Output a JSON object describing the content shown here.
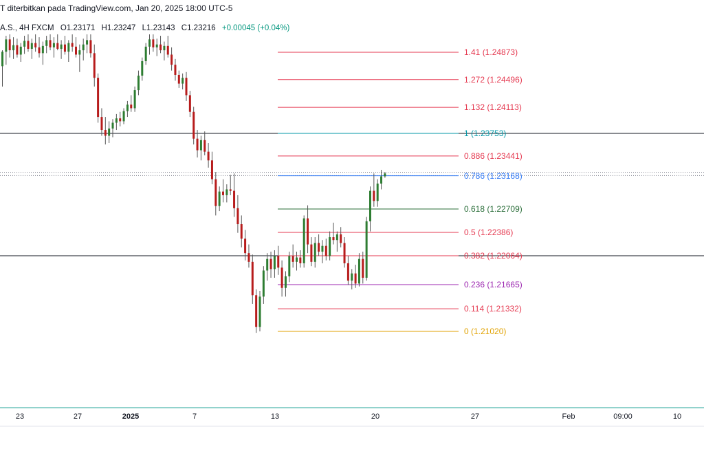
{
  "header": {
    "published_text": "T diterbitkan pada TradingView.com, Jan 20, 2025 18:00 UTC-5"
  },
  "ohlc": {
    "symbol": "A.S., 4H FXCM",
    "open": "O1.23171",
    "high": "H1.23247",
    "low": "L1.23143",
    "close": "C1.23216",
    "change": "+0.00045 (+0.04%)"
  },
  "chart_data": {
    "type": "candlestick",
    "fib_levels": [
      {
        "ratio": "1.41",
        "price": "1.24873",
        "label": "1.41 (1.24873)",
        "color": "#e53950"
      },
      {
        "ratio": "1.272",
        "price": "1.24496",
        "label": "1.272 (1.24496)",
        "color": "#e53950"
      },
      {
        "ratio": "1.132",
        "price": "1.24113",
        "label": "1.132 (1.24113)",
        "color": "#e53950"
      },
      {
        "ratio": "1",
        "price": "1.23753",
        "label": "1 (1.23753)",
        "color": "#0097a7"
      },
      {
        "ratio": "0.886",
        "price": "1.23441",
        "label": "0.886 (1.23441)",
        "color": "#e53950"
      },
      {
        "ratio": "0.786",
        "price": "1.23168",
        "label": "0.786 (1.23168)",
        "color": "#3179f5"
      },
      {
        "ratio": "0.618",
        "price": "1.22709",
        "label": "0.618 (1.22709)",
        "color": "#2b6e3a"
      },
      {
        "ratio": "0.5",
        "price": "1.22386",
        "label": "0.5 (1.22386)",
        "color": "#e53950"
      },
      {
        "ratio": "0.382",
        "price": "1.22064",
        "label": "0.382 (1.22064)",
        "color": "#e53950"
      },
      {
        "ratio": "0.236",
        "price": "1.21665",
        "label": "0.236 (1.21665)",
        "color": "#9c27b0"
      },
      {
        "ratio": "0.114",
        "price": "1.21332",
        "label": "0.114 (1.21332)",
        "color": "#e53950"
      },
      {
        "ratio": "0",
        "price": "1.21020",
        "label": "0 (1.21020)",
        "color": "#e1a200"
      }
    ],
    "horizontal_lines": [
      1.23753,
      1.22064
    ],
    "x_axis_labels": [
      "23",
      "27",
      "2025",
      "7",
      "13",
      "20",
      "27",
      "Feb",
      "09:00",
      "10"
    ],
    "candles": [
      {
        "o": 1.2468,
        "h": 1.249,
        "l": 1.244,
        "c": 1.2488
      },
      {
        "o": 1.2488,
        "h": 1.251,
        "l": 1.247,
        "c": 1.2505
      },
      {
        "o": 1.2505,
        "h": 1.2512,
        "l": 1.248,
        "c": 1.249
      },
      {
        "o": 1.249,
        "h": 1.2508,
        "l": 1.2478,
        "c": 1.2497
      },
      {
        "o": 1.2497,
        "h": 1.2506,
        "l": 1.248,
        "c": 1.2484
      },
      {
        "o": 1.2484,
        "h": 1.25,
        "l": 1.2474,
        "c": 1.2495
      },
      {
        "o": 1.2495,
        "h": 1.251,
        "l": 1.2485,
        "c": 1.2503
      },
      {
        "o": 1.2503,
        "h": 1.2512,
        "l": 1.2488,
        "c": 1.2492
      },
      {
        "o": 1.2492,
        "h": 1.2506,
        "l": 1.2478,
        "c": 1.25
      },
      {
        "o": 1.25,
        "h": 1.2512,
        "l": 1.2488,
        "c": 1.2494
      },
      {
        "o": 1.2494,
        "h": 1.2508,
        "l": 1.248,
        "c": 1.2486
      },
      {
        "o": 1.2486,
        "h": 1.2502,
        "l": 1.247,
        "c": 1.2496
      },
      {
        "o": 1.2496,
        "h": 1.251,
        "l": 1.2486,
        "c": 1.2504
      },
      {
        "o": 1.2504,
        "h": 1.2512,
        "l": 1.249,
        "c": 1.2494
      },
      {
        "o": 1.2494,
        "h": 1.2508,
        "l": 1.248,
        "c": 1.25
      },
      {
        "o": 1.25,
        "h": 1.2512,
        "l": 1.249,
        "c": 1.2492
      },
      {
        "o": 1.2492,
        "h": 1.2504,
        "l": 1.2478,
        "c": 1.2498
      },
      {
        "o": 1.2498,
        "h": 1.251,
        "l": 1.2484,
        "c": 1.2488
      },
      {
        "o": 1.2488,
        "h": 1.2504,
        "l": 1.2474,
        "c": 1.25
      },
      {
        "o": 1.25,
        "h": 1.2512,
        "l": 1.2488,
        "c": 1.2495
      },
      {
        "o": 1.2495,
        "h": 1.2508,
        "l": 1.248,
        "c": 1.2484
      },
      {
        "o": 1.2484,
        "h": 1.2498,
        "l": 1.246,
        "c": 1.249
      },
      {
        "o": 1.249,
        "h": 1.2506,
        "l": 1.2476,
        "c": 1.2498
      },
      {
        "o": 1.2498,
        "h": 1.2512,
        "l": 1.2486,
        "c": 1.2504
      },
      {
        "o": 1.2504,
        "h": 1.2512,
        "l": 1.248,
        "c": 1.2486
      },
      {
        "o": 1.2486,
        "h": 1.2498,
        "l": 1.244,
        "c": 1.2452
      },
      {
        "o": 1.2452,
        "h": 1.2458,
        "l": 1.239,
        "c": 1.2398
      },
      {
        "o": 1.2398,
        "h": 1.241,
        "l": 1.2372,
        "c": 1.238
      },
      {
        "o": 1.238,
        "h": 1.2398,
        "l": 1.236,
        "c": 1.2372
      },
      {
        "o": 1.2372,
        "h": 1.2392,
        "l": 1.2362,
        "c": 1.2382
      },
      {
        "o": 1.2382,
        "h": 1.2395,
        "l": 1.237,
        "c": 1.239
      },
      {
        "o": 1.239,
        "h": 1.2402,
        "l": 1.238,
        "c": 1.2396
      },
      {
        "o": 1.2396,
        "h": 1.2405,
        "l": 1.2385,
        "c": 1.2392
      },
      {
        "o": 1.2392,
        "h": 1.241,
        "l": 1.2388,
        "c": 1.2406
      },
      {
        "o": 1.2406,
        "h": 1.242,
        "l": 1.2398,
        "c": 1.2415
      },
      {
        "o": 1.2415,
        "h": 1.2428,
        "l": 1.2405,
        "c": 1.241
      },
      {
        "o": 1.241,
        "h": 1.244,
        "l": 1.2405,
        "c": 1.2435
      },
      {
        "o": 1.2435,
        "h": 1.2462,
        "l": 1.2428,
        "c": 1.2455
      },
      {
        "o": 1.2455,
        "h": 1.248,
        "l": 1.2448,
        "c": 1.2475
      },
      {
        "o": 1.2475,
        "h": 1.25,
        "l": 1.247,
        "c": 1.2495
      },
      {
        "o": 1.2495,
        "h": 1.2512,
        "l": 1.2484,
        "c": 1.2505
      },
      {
        "o": 1.2505,
        "h": 1.2512,
        "l": 1.2488,
        "c": 1.2494
      },
      {
        "o": 1.2494,
        "h": 1.2506,
        "l": 1.2482,
        "c": 1.2498
      },
      {
        "o": 1.2498,
        "h": 1.251,
        "l": 1.2486,
        "c": 1.249
      },
      {
        "o": 1.249,
        "h": 1.2502,
        "l": 1.2476,
        "c": 1.2496
      },
      {
        "o": 1.2496,
        "h": 1.251,
        "l": 1.248,
        "c": 1.2484
      },
      {
        "o": 1.2484,
        "h": 1.2494,
        "l": 1.2462,
        "c": 1.247
      },
      {
        "o": 1.247,
        "h": 1.2478,
        "l": 1.2448,
        "c": 1.2456
      },
      {
        "o": 1.2456,
        "h": 1.2462,
        "l": 1.2438,
        "c": 1.2444
      },
      {
        "o": 1.2444,
        "h": 1.2458,
        "l": 1.2436,
        "c": 1.2452
      },
      {
        "o": 1.2452,
        "h": 1.246,
        "l": 1.242,
        "c": 1.2428
      },
      {
        "o": 1.2428,
        "h": 1.2434,
        "l": 1.2398,
        "c": 1.2405
      },
      {
        "o": 1.2405,
        "h": 1.2412,
        "l": 1.236,
        "c": 1.2368
      },
      {
        "o": 1.2368,
        "h": 1.238,
        "l": 1.2342,
        "c": 1.2352
      },
      {
        "o": 1.2352,
        "h": 1.2372,
        "l": 1.2338,
        "c": 1.2366
      },
      {
        "o": 1.2366,
        "h": 1.2378,
        "l": 1.2345,
        "c": 1.235
      },
      {
        "o": 1.235,
        "h": 1.2362,
        "l": 1.2328,
        "c": 1.2338
      },
      {
        "o": 1.2338,
        "h": 1.235,
        "l": 1.2305,
        "c": 1.2312
      },
      {
        "o": 1.2312,
        "h": 1.2322,
        "l": 1.2262,
        "c": 1.2275
      },
      {
        "o": 1.2275,
        "h": 1.2302,
        "l": 1.2268,
        "c": 1.2295
      },
      {
        "o": 1.2295,
        "h": 1.2312,
        "l": 1.228,
        "c": 1.229
      },
      {
        "o": 1.229,
        "h": 1.2305,
        "l": 1.228,
        "c": 1.2298
      },
      {
        "o": 1.2298,
        "h": 1.2318,
        "l": 1.229,
        "c": 1.2296
      },
      {
        "o": 1.2296,
        "h": 1.232,
        "l": 1.226,
        "c": 1.2272
      },
      {
        "o": 1.2272,
        "h": 1.229,
        "l": 1.2238,
        "c": 1.225
      },
      {
        "o": 1.225,
        "h": 1.2262,
        "l": 1.2218,
        "c": 1.223
      },
      {
        "o": 1.223,
        "h": 1.2242,
        "l": 1.22,
        "c": 1.221
      },
      {
        "o": 1.221,
        "h": 1.2222,
        "l": 1.219,
        "c": 1.2198
      },
      {
        "o": 1.2198,
        "h": 1.2208,
        "l": 1.214,
        "c": 1.2152
      },
      {
        "o": 1.2152,
        "h": 1.216,
        "l": 1.21,
        "c": 1.2108
      },
      {
        "o": 1.2108,
        "h": 1.2158,
        "l": 1.2102,
        "c": 1.215
      },
      {
        "o": 1.215,
        "h": 1.2192,
        "l": 1.214,
        "c": 1.2186
      },
      {
        "o": 1.2186,
        "h": 1.221,
        "l": 1.2172,
        "c": 1.2202
      },
      {
        "o": 1.2202,
        "h": 1.2212,
        "l": 1.2176,
        "c": 1.2188
      },
      {
        "o": 1.2188,
        "h": 1.2214,
        "l": 1.2176,
        "c": 1.2206
      },
      {
        "o": 1.2206,
        "h": 1.222,
        "l": 1.218,
        "c": 1.219
      },
      {
        "o": 1.219,
        "h": 1.22,
        "l": 1.215,
        "c": 1.2162
      },
      {
        "o": 1.2162,
        "h": 1.2185,
        "l": 1.215,
        "c": 1.2178
      },
      {
        "o": 1.2178,
        "h": 1.2212,
        "l": 1.217,
        "c": 1.2206
      },
      {
        "o": 1.2206,
        "h": 1.2222,
        "l": 1.219,
        "c": 1.2198
      },
      {
        "o": 1.2198,
        "h": 1.2212,
        "l": 1.2186,
        "c": 1.2204
      },
      {
        "o": 1.2204,
        "h": 1.2214,
        "l": 1.219,
        "c": 1.2196
      },
      {
        "o": 1.2196,
        "h": 1.2262,
        "l": 1.219,
        "c": 1.2258
      },
      {
        "o": 1.2258,
        "h": 1.2276,
        "l": 1.221,
        "c": 1.2222
      },
      {
        "o": 1.2222,
        "h": 1.2232,
        "l": 1.2192,
        "c": 1.2198
      },
      {
        "o": 1.2198,
        "h": 1.2232,
        "l": 1.219,
        "c": 1.2224
      },
      {
        "o": 1.2224,
        "h": 1.2236,
        "l": 1.2206,
        "c": 1.2212
      },
      {
        "o": 1.2212,
        "h": 1.2228,
        "l": 1.2196,
        "c": 1.222
      },
      {
        "o": 1.222,
        "h": 1.223,
        "l": 1.22,
        "c": 1.2206
      },
      {
        "o": 1.2206,
        "h": 1.224,
        "l": 1.22,
        "c": 1.2232
      },
      {
        "o": 1.2232,
        "h": 1.2252,
        "l": 1.2222,
        "c": 1.2228
      },
      {
        "o": 1.2228,
        "h": 1.224,
        "l": 1.2212,
        "c": 1.2236
      },
      {
        "o": 1.2236,
        "h": 1.2246,
        "l": 1.2218,
        "c": 1.2224
      },
      {
        "o": 1.2224,
        "h": 1.2232,
        "l": 1.219,
        "c": 1.2196
      },
      {
        "o": 1.2196,
        "h": 1.2206,
        "l": 1.2166,
        "c": 1.2172
      },
      {
        "o": 1.2172,
        "h": 1.2188,
        "l": 1.216,
        "c": 1.2182
      },
      {
        "o": 1.2182,
        "h": 1.2194,
        "l": 1.2162,
        "c": 1.2168
      },
      {
        "o": 1.2168,
        "h": 1.221,
        "l": 1.2164,
        "c": 1.2202
      },
      {
        "o": 1.2202,
        "h": 1.2212,
        "l": 1.2168,
        "c": 1.2176
      },
      {
        "o": 1.2176,
        "h": 1.226,
        "l": 1.2172,
        "c": 1.2254
      },
      {
        "o": 1.2254,
        "h": 1.2302,
        "l": 1.224,
        "c": 1.2296
      },
      {
        "o": 1.2296,
        "h": 1.232,
        "l": 1.2274,
        "c": 1.2282
      },
      {
        "o": 1.2282,
        "h": 1.2312,
        "l": 1.2274,
        "c": 1.2306
      },
      {
        "o": 1.2306,
        "h": 1.2325,
        "l": 1.2298,
        "c": 1.2316
      },
      {
        "o": 1.2316,
        "h": 1.2322,
        "l": 1.2314,
        "c": 1.232
      }
    ]
  },
  "colors": {
    "up": "#2e7d32",
    "down": "#b71c1c",
    "grid_border": "#26a69a"
  }
}
